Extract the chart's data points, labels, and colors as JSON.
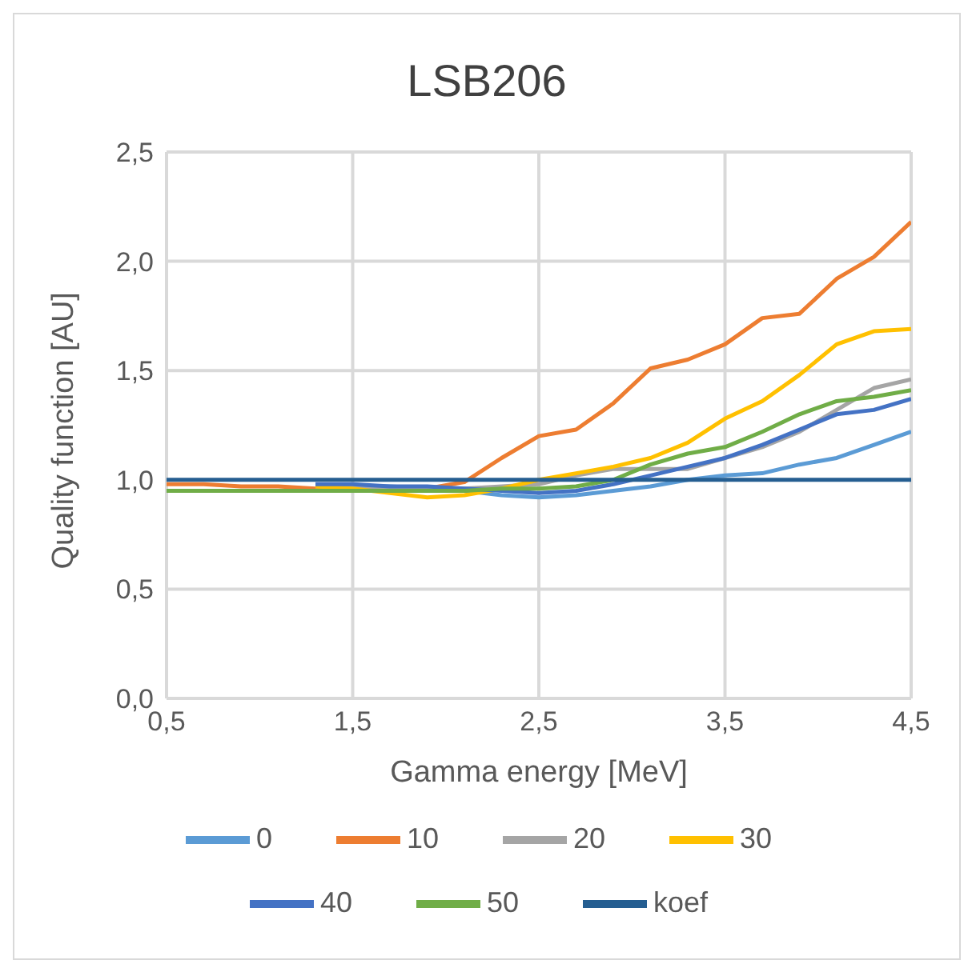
{
  "chart_data": {
    "type": "line",
    "title": "LSB206",
    "xlabel": "Gamma energy [MeV]",
    "ylabel": "Quality function [AU]",
    "x": [
      0.5,
      0.7,
      0.9,
      1.1,
      1.3,
      1.5,
      1.7,
      1.9,
      2.1,
      2.3,
      2.5,
      2.7,
      2.9,
      3.1,
      3.3,
      3.5,
      3.7,
      3.9,
      4.1,
      4.3,
      4.5
    ],
    "series": [
      {
        "name": "0",
        "color": "#5b9bd5",
        "values": [
          null,
          null,
          null,
          null,
          null,
          0.97,
          0.97,
          0.96,
          0.95,
          0.93,
          0.92,
          0.93,
          0.95,
          0.97,
          1.0,
          1.02,
          1.03,
          1.07,
          1.1,
          1.16,
          1.22
        ]
      },
      {
        "name": "10",
        "color": "#ed7d31",
        "values": [
          0.98,
          0.98,
          0.97,
          0.97,
          0.96,
          0.96,
          0.96,
          0.96,
          0.99,
          1.1,
          1.2,
          1.23,
          1.35,
          1.51,
          1.55,
          1.62,
          1.74,
          1.76,
          1.92,
          2.02,
          2.18
        ]
      },
      {
        "name": "20",
        "color": "#a5a5a5",
        "values": [
          null,
          null,
          null,
          null,
          0.97,
          0.97,
          0.96,
          0.96,
          0.96,
          0.97,
          0.98,
          1.02,
          1.05,
          1.05,
          1.05,
          1.1,
          1.15,
          1.22,
          1.32,
          1.42,
          1.46
        ]
      },
      {
        "name": "30",
        "color": "#ffc000",
        "values": [
          null,
          null,
          null,
          null,
          0.97,
          0.96,
          0.94,
          0.92,
          0.93,
          0.96,
          1.0,
          1.03,
          1.06,
          1.1,
          1.17,
          1.28,
          1.36,
          1.48,
          1.62,
          1.68,
          1.69
        ]
      },
      {
        "name": "40",
        "color": "#4472c4",
        "values": [
          null,
          null,
          null,
          null,
          0.98,
          0.98,
          0.97,
          0.97,
          0.96,
          0.95,
          0.94,
          0.95,
          0.98,
          1.02,
          1.06,
          1.1,
          1.16,
          1.23,
          1.3,
          1.32,
          1.37
        ]
      },
      {
        "name": "50",
        "color": "#70ad47",
        "values": [
          0.95,
          0.95,
          0.95,
          0.95,
          0.95,
          0.95,
          0.95,
          0.95,
          0.95,
          0.96,
          0.96,
          0.97,
          1.0,
          1.07,
          1.12,
          1.15,
          1.22,
          1.3,
          1.36,
          1.38,
          1.41
        ]
      },
      {
        "name": "koef",
        "color": "#255e91",
        "values": [
          1.0,
          1.0,
          1.0,
          1.0,
          1.0,
          1.0,
          1.0,
          1.0,
          1.0,
          1.0,
          1.0,
          1.0,
          1.0,
          1.0,
          1.0,
          1.0,
          1.0,
          1.0,
          1.0,
          1.0,
          1.0
        ]
      }
    ],
    "xlim": [
      0.5,
      4.5
    ],
    "xticks": [
      {
        "value": 0.5,
        "label": "0,5"
      },
      {
        "value": 1.5,
        "label": "1,5"
      },
      {
        "value": 2.5,
        "label": "2,5"
      },
      {
        "value": 3.5,
        "label": "3,5"
      },
      {
        "value": 4.5,
        "label": "4,5"
      }
    ],
    "ylim": [
      0,
      2.5
    ],
    "yticks": [
      {
        "value": 0,
        "label": "0,0"
      },
      {
        "value": 0.5,
        "label": "0,5"
      },
      {
        "value": 1,
        "label": "1,0"
      },
      {
        "value": 1.5,
        "label": "1,5"
      },
      {
        "value": 2,
        "label": "2,0"
      },
      {
        "value": 2.5,
        "label": "2,5"
      }
    ],
    "grid": true,
    "legend": "bottom",
    "marker": "none",
    "line_style": "solid"
  }
}
